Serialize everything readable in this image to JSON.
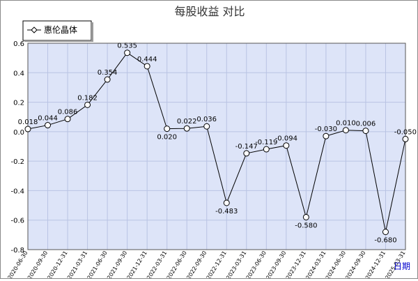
{
  "chart_data": {
    "type": "line",
    "title": "每股收益  对比",
    "xlabel": "日期",
    "ylabel": "",
    "ylim": [
      -0.8,
      0.6
    ],
    "yticks": [
      "0.6",
      "0.4",
      "0.2",
      "0.0",
      "-0.2",
      "-0.4",
      "-0.6",
      "-0.8"
    ],
    "grid": true,
    "legend_position": "top-left",
    "categories": [
      "2020-06-30",
      "2020-09-30",
      "2020-12-31",
      "2021-03-31",
      "2021-06-30",
      "2021-09-30",
      "2021-12-31",
      "2022-03-31",
      "2022-06-30",
      "2022-09-30",
      "2022-12-31",
      "2023-03-31",
      "2023-06-30",
      "2023-09-30",
      "2023-12-31",
      "2024-03-31",
      "2024-06-30",
      "2024-09-30",
      "2024-12-31",
      "2025-03-31"
    ],
    "series": [
      {
        "name": "惠伦晶体",
        "values": [
          0.018,
          0.044,
          0.086,
          0.182,
          0.354,
          0.535,
          0.444,
          0.02,
          0.022,
          0.036,
          -0.483,
          -0.147,
          -0.119,
          -0.094,
          -0.58,
          -0.03,
          0.01,
          0.006,
          -0.68,
          -0.05
        ],
        "labels": [
          "0.018",
          "0.044",
          "0.086",
          "0.182",
          "0.354",
          "0.535",
          "0.444",
          "0.020",
          "0.022",
          "0.036",
          "-0.483",
          "-0.147",
          "-0.119",
          "-0.094",
          "-0.580",
          "-0.030",
          "0.010",
          "0.006",
          "-0.680",
          "-0.050"
        ]
      }
    ],
    "colors": {
      "plot_background": "#dde4f8",
      "grid": "#b9c3e3",
      "series_line": "#000000",
      "axis_text": "#000000",
      "xlabel_text": "#0000cc"
    }
  }
}
